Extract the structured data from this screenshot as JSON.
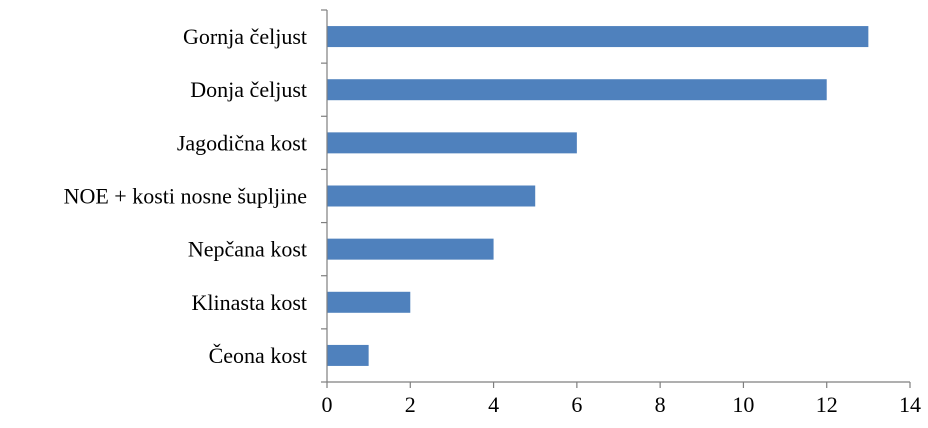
{
  "chart_data": {
    "type": "bar",
    "orientation": "horizontal",
    "title": "",
    "xlabel": "",
    "ylabel": "",
    "categories": [
      "Gornja čeljust",
      "Donja čeljust",
      "Jagodična kost",
      "NOE + kosti nosne šupljine",
      "Nepčana kost",
      "Klinasta kost",
      "Čeona kost"
    ],
    "values": [
      13,
      12,
      6,
      5,
      4,
      2,
      1
    ],
    "xlim": [
      0,
      14
    ],
    "xticks": [
      "0",
      "2",
      "4",
      "6",
      "8",
      "10",
      "12",
      "14"
    ],
    "bar_color": "#4f81bd",
    "grid": false,
    "legend": "none"
  }
}
